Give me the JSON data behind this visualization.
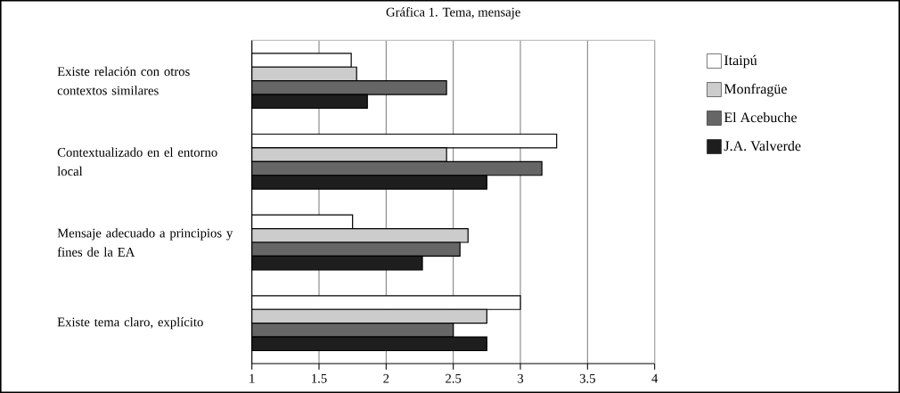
{
  "chart_data": {
    "type": "bar",
    "orientation": "horizontal",
    "title": "Gráfica 1. Tema, mensaje",
    "categories": [
      "Existe relación con otros contextos similares",
      "Contextualizado en el entorno local",
      "Mensaje adecuado a principios y fines de la EA",
      "Existe tema claro, explícito"
    ],
    "series": [
      {
        "name": "Itaipú",
        "color": "#ffffff",
        "values": [
          1.74,
          3.27,
          1.75,
          3.0
        ]
      },
      {
        "name": "Monfragüe",
        "color": "#cccccc",
        "values": [
          1.78,
          2.45,
          2.61,
          2.75
        ]
      },
      {
        "name": "El Acebuche",
        "color": "#666666",
        "values": [
          2.45,
          3.16,
          2.55,
          2.5
        ]
      },
      {
        "name": "J.A. Valverde",
        "color": "#1e1e1e",
        "values": [
          1.86,
          2.75,
          2.27,
          2.75
        ]
      }
    ],
    "xlim": [
      1,
      4
    ],
    "xticks": [
      1,
      1.5,
      2,
      2.5,
      3,
      3.5,
      4
    ],
    "grid": "x",
    "legend": "right"
  }
}
